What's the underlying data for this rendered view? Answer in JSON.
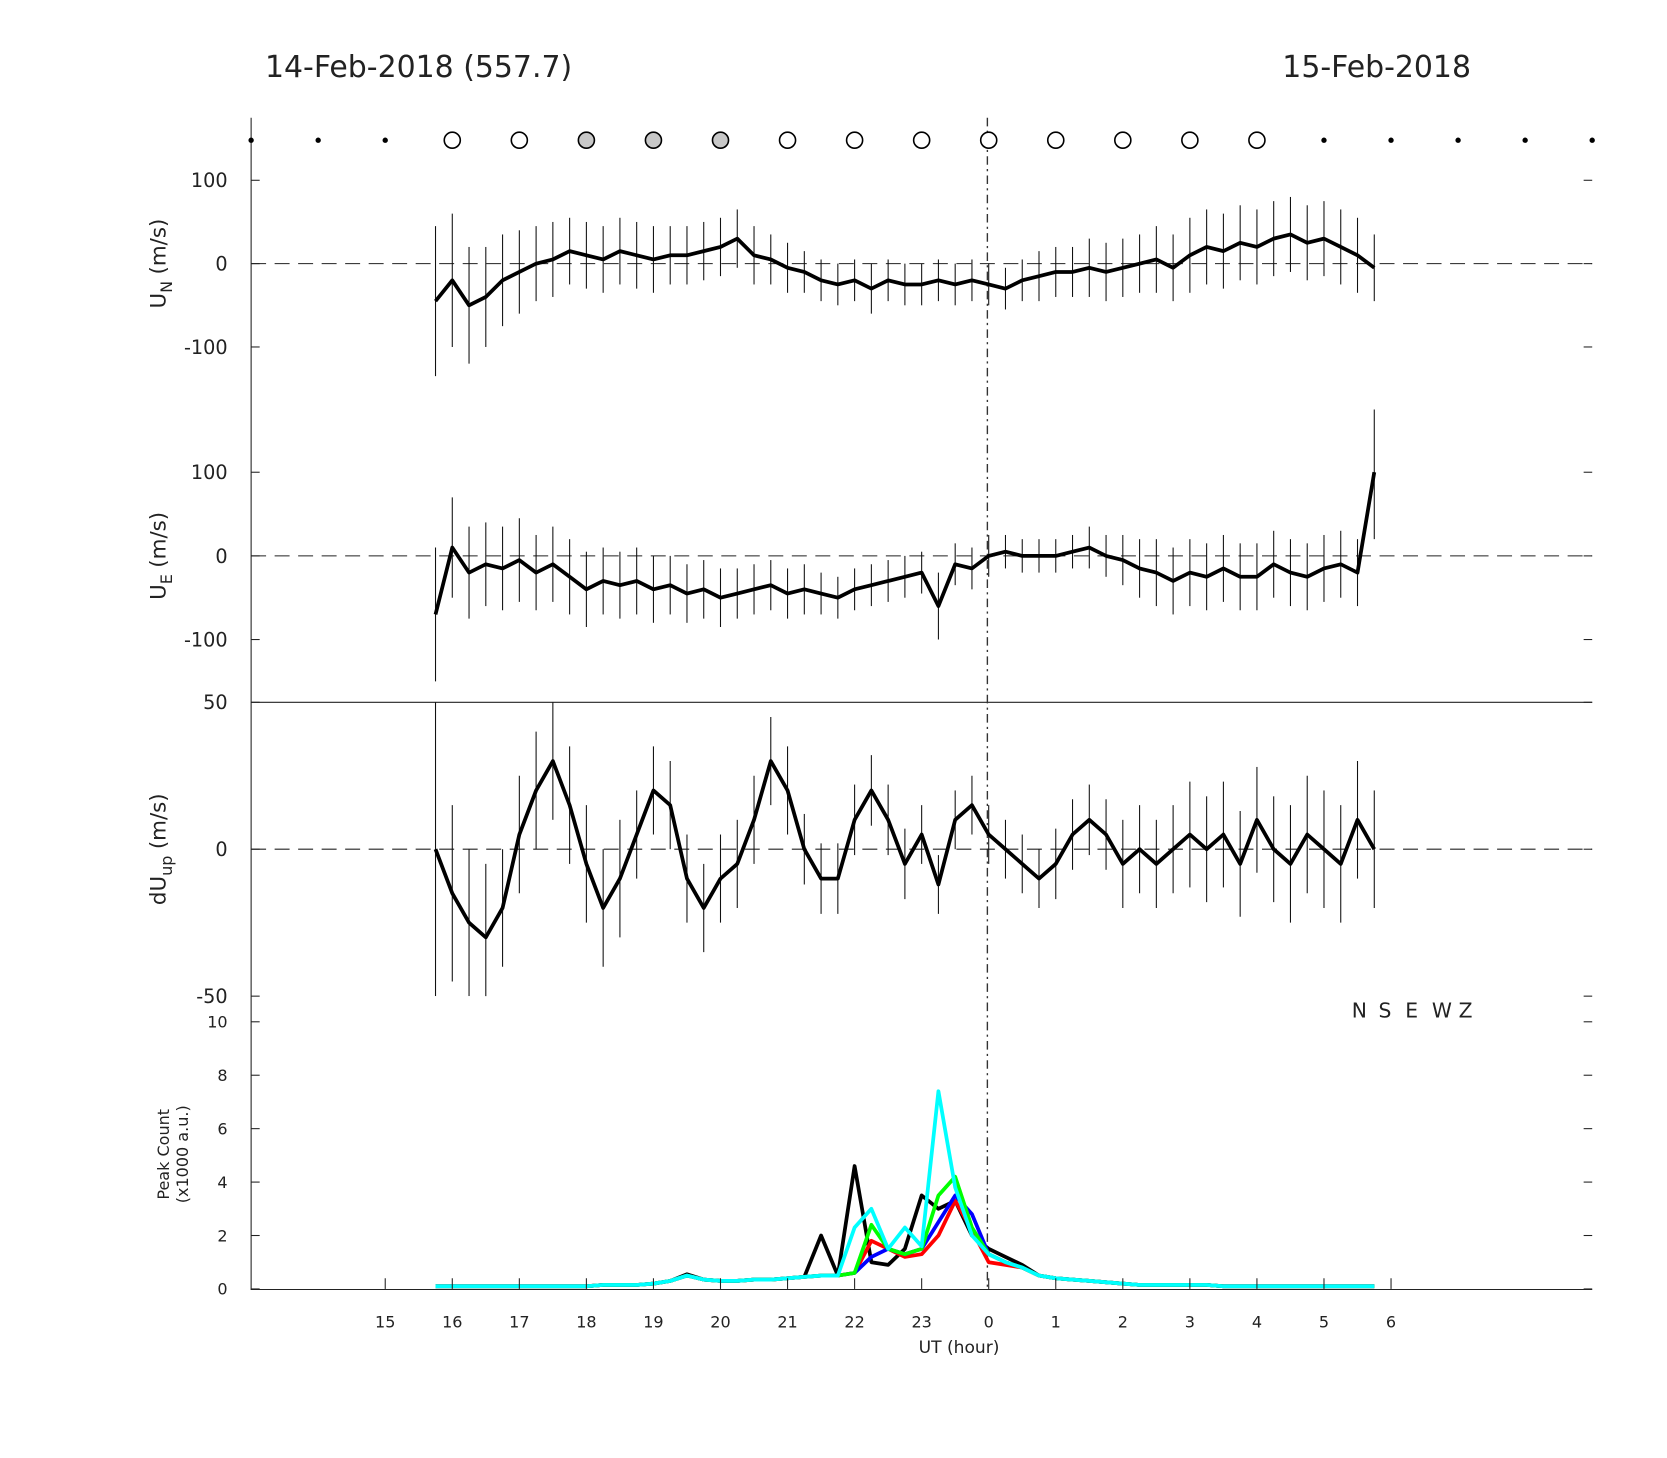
{
  "header": {
    "left": "14-Feb-2018 (557.7)",
    "right": "15-Feb-2018"
  },
  "chart_data": [
    {
      "type": "line",
      "ylabel": "U",
      "ylabel_sub": "N",
      "ylabel_unit": "(m/s)",
      "color": "#000000",
      "xlim": [
        13,
        33
      ],
      "ylim": [
        -175,
        175
      ],
      "yticks": [
        -100,
        0,
        100
      ],
      "x": [
        15.75,
        16,
        16.25,
        16.5,
        16.75,
        17,
        17.25,
        17.5,
        17.75,
        18,
        18.25,
        18.5,
        18.75,
        19,
        19.25,
        19.5,
        19.75,
        20,
        20.25,
        20.5,
        20.75,
        21,
        21.25,
        21.5,
        21.75,
        22,
        22.25,
        22.5,
        22.75,
        23,
        23.25,
        23.5,
        23.75,
        24,
        24.25,
        24.5,
        24.75,
        25,
        25.25,
        25.5,
        25.75,
        26,
        26.25,
        26.5,
        26.75,
        27,
        27.25,
        27.5,
        27.75,
        28,
        28.25,
        28.5,
        28.75,
        29,
        29.25,
        29.5,
        29.75
      ],
      "values": [
        -45,
        -20,
        -50,
        -40,
        -20,
        -10,
        0,
        5,
        15,
        10,
        5,
        15,
        10,
        5,
        10,
        10,
        15,
        20,
        30,
        10,
        5,
        -5,
        -10,
        -20,
        -25,
        -20,
        -30,
        -20,
        -25,
        -25,
        -20,
        -25,
        -20,
        -25,
        -30,
        -20,
        -15,
        -10,
        -10,
        -5,
        -10,
        -5,
        0,
        5,
        -5,
        10,
        20,
        15,
        25,
        20,
        30,
        35,
        25,
        30,
        20,
        10,
        -5
      ],
      "errors": [
        90,
        80,
        70,
        60,
        55,
        50,
        45,
        45,
        40,
        40,
        40,
        40,
        40,
        40,
        35,
        35,
        35,
        35,
        35,
        35,
        30,
        30,
        25,
        25,
        25,
        25,
        30,
        25,
        25,
        25,
        25,
        25,
        25,
        25,
        25,
        25,
        30,
        30,
        30,
        35,
        35,
        35,
        35,
        40,
        40,
        45,
        45,
        45,
        45,
        45,
        45,
        45,
        45,
        45,
        45,
        45,
        40
      ]
    },
    {
      "type": "line",
      "ylabel": "U",
      "ylabel_sub": "E",
      "ylabel_unit": "(m/s)",
      "color": "#000000",
      "xlim": [
        13,
        33
      ],
      "ylim": [
        -175,
        175
      ],
      "yticks": [
        -100,
        0,
        100
      ],
      "x": [
        15.75,
        16,
        16.25,
        16.5,
        16.75,
        17,
        17.25,
        17.5,
        17.75,
        18,
        18.25,
        18.5,
        18.75,
        19,
        19.25,
        19.5,
        19.75,
        20,
        20.25,
        20.5,
        20.75,
        21,
        21.25,
        21.5,
        21.75,
        22,
        22.25,
        22.5,
        22.75,
        23,
        23.25,
        23.5,
        23.75,
        24,
        24.25,
        24.5,
        24.75,
        25,
        25.25,
        25.5,
        25.75,
        26,
        26.25,
        26.5,
        26.75,
        27,
        27.25,
        27.5,
        27.75,
        28,
        28.25,
        28.5,
        28.75,
        29,
        29.25,
        29.5,
        29.75
      ],
      "values": [
        -70,
        10,
        -20,
        -10,
        -15,
        -5,
        -20,
        -10,
        -25,
        -40,
        -30,
        -35,
        -30,
        -40,
        -35,
        -45,
        -40,
        -50,
        -45,
        -40,
        -35,
        -45,
        -40,
        -45,
        -50,
        -40,
        -35,
        -30,
        -25,
        -20,
        -60,
        -10,
        -15,
        0,
        5,
        0,
        0,
        0,
        5,
        10,
        0,
        -5,
        -15,
        -20,
        -30,
        -20,
        -25,
        -15,
        -25,
        -25,
        -10,
        -20,
        -25,
        -15,
        -10,
        -20,
        100
      ],
      "errors": [
        80,
        60,
        55,
        50,
        50,
        50,
        45,
        45,
        45,
        45,
        40,
        40,
        40,
        40,
        35,
        35,
        35,
        35,
        30,
        30,
        30,
        30,
        30,
        25,
        25,
        25,
        25,
        25,
        25,
        25,
        40,
        25,
        25,
        25,
        20,
        20,
        20,
        20,
        20,
        25,
        25,
        30,
        35,
        40,
        40,
        40,
        40,
        40,
        40,
        40,
        40,
        40,
        40,
        40,
        40,
        40,
        80
      ]
    },
    {
      "type": "line",
      "ylabel": "dU",
      "ylabel_sub": "up",
      "ylabel_unit": "(m/s)",
      "color": "#000000",
      "xlim": [
        13,
        33
      ],
      "ylim": [
        -50,
        50
      ],
      "yticks": [
        -50,
        0,
        50
      ],
      "x": [
        15.75,
        16,
        16.25,
        16.5,
        16.75,
        17,
        17.25,
        17.5,
        17.75,
        18,
        18.25,
        18.5,
        18.75,
        19,
        19.25,
        19.5,
        19.75,
        20,
        20.25,
        20.5,
        20.75,
        21,
        21.25,
        21.5,
        21.75,
        22,
        22.25,
        22.5,
        22.75,
        23,
        23.25,
        23.5,
        23.75,
        24,
        24.25,
        24.5,
        24.75,
        25,
        25.25,
        25.5,
        25.75,
        26,
        26.25,
        26.5,
        26.75,
        27,
        27.25,
        27.5,
        27.75,
        28,
        28.25,
        28.5,
        28.75,
        29,
        29.25,
        29.5,
        29.75
      ],
      "values": [
        0,
        -15,
        -25,
        -30,
        -20,
        5,
        20,
        30,
        15,
        -5,
        -20,
        -10,
        5,
        20,
        15,
        -10,
        -20,
        -10,
        -5,
        10,
        30,
        20,
        0,
        -10,
        -10,
        10,
        20,
        10,
        -5,
        5,
        -12,
        10,
        15,
        5,
        0,
        -5,
        -10,
        -5,
        5,
        10,
        5,
        -5,
        0,
        -5,
        0,
        5,
        0,
        5,
        -5,
        10,
        0,
        -5,
        5,
        0,
        -5,
        10,
        0
      ],
      "errors": [
        50,
        30,
        25,
        25,
        20,
        20,
        20,
        20,
        20,
        20,
        20,
        20,
        15,
        15,
        15,
        15,
        15,
        15,
        15,
        15,
        15,
        15,
        12,
        12,
        12,
        12,
        12,
        12,
        12,
        10,
        10,
        10,
        10,
        10,
        10,
        10,
        10,
        12,
        12,
        12,
        12,
        15,
        15,
        15,
        15,
        18,
        18,
        18,
        18,
        18,
        18,
        20,
        20,
        20,
        20,
        20,
        20
      ]
    },
    {
      "type": "multiline",
      "ylabel": [
        "Peak Count",
        "(x1000 a.u.)"
      ],
      "xlabel": "UT (hour)",
      "xlim": [
        13,
        33
      ],
      "ylim": [
        0,
        10
      ],
      "yticks": [
        0,
        2,
        4,
        6,
        8,
        10
      ],
      "xticks": [
        15,
        16,
        17,
        18,
        19,
        20,
        21,
        22,
        23,
        {
          "value": 24,
          "label": "0"
        },
        {
          "value": 25,
          "label": "1"
        },
        {
          "value": 26,
          "label": "2"
        },
        {
          "value": 27,
          "label": "3"
        },
        {
          "value": 28,
          "label": "4"
        },
        {
          "value": 29,
          "label": "5"
        },
        {
          "value": 30,
          "label": "6"
        }
      ],
      "x": [
        15.75,
        16,
        16.25,
        16.5,
        16.75,
        17,
        17.25,
        17.5,
        17.75,
        18,
        18.25,
        18.5,
        18.75,
        19,
        19.25,
        19.5,
        19.75,
        20,
        20.25,
        20.5,
        20.75,
        21,
        21.25,
        21.5,
        21.75,
        22,
        22.25,
        22.5,
        22.75,
        23,
        23.25,
        23.5,
        23.75,
        24,
        24.25,
        24.5,
        24.75,
        25,
        25.25,
        25.5,
        25.75,
        26,
        26.25,
        26.5,
        26.75,
        27,
        27.25,
        27.5,
        27.75,
        28,
        28.25,
        28.5,
        28.75,
        29,
        29.25,
        29.5,
        29.75
      ],
      "series": [
        {
          "name": "N",
          "color": "#000000",
          "values": [
            0.1,
            0.1,
            0.1,
            0.1,
            0.1,
            0.1,
            0.1,
            0.1,
            0.1,
            0.1,
            0.15,
            0.15,
            0.15,
            0.2,
            0.3,
            0.55,
            0.35,
            0.3,
            0.3,
            0.35,
            0.35,
            0.4,
            0.45,
            2.0,
            0.5,
            4.6,
            1.0,
            0.9,
            1.5,
            3.5,
            3.0,
            3.3,
            2.0,
            1.5,
            1.2,
            0.9,
            0.5,
            0.4,
            0.35,
            0.3,
            0.25,
            0.2,
            0.15,
            0.15,
            0.15,
            0.15,
            0.15,
            0.1,
            0.1,
            0.1,
            0.1,
            0.1,
            0.1,
            0.1,
            0.1,
            0.1,
            0.1
          ]
        },
        {
          "name": "S",
          "color": "#ff0000",
          "values": [
            0.1,
            0.1,
            0.1,
            0.1,
            0.1,
            0.1,
            0.1,
            0.1,
            0.1,
            0.1,
            0.15,
            0.15,
            0.15,
            0.2,
            0.3,
            0.5,
            0.35,
            0.3,
            0.3,
            0.35,
            0.35,
            0.4,
            0.45,
            0.5,
            0.5,
            0.6,
            1.8,
            1.5,
            1.2,
            1.3,
            2.0,
            3.3,
            2.2,
            1.0,
            0.9,
            0.8,
            0.5,
            0.4,
            0.35,
            0.3,
            0.25,
            0.2,
            0.15,
            0.15,
            0.15,
            0.15,
            0.15,
            0.1,
            0.1,
            0.1,
            0.1,
            0.1,
            0.1,
            0.1,
            0.1,
            0.1,
            0.1
          ]
        },
        {
          "name": "E",
          "color": "#0000ff",
          "values": [
            0.1,
            0.1,
            0.1,
            0.1,
            0.1,
            0.1,
            0.1,
            0.1,
            0.1,
            0.1,
            0.15,
            0.15,
            0.15,
            0.2,
            0.3,
            0.5,
            0.35,
            0.3,
            0.3,
            0.35,
            0.35,
            0.4,
            0.45,
            0.5,
            0.5,
            0.6,
            1.2,
            1.5,
            1.3,
            1.5,
            2.5,
            3.5,
            2.8,
            1.3,
            1.0,
            0.8,
            0.5,
            0.4,
            0.35,
            0.3,
            0.25,
            0.2,
            0.15,
            0.15,
            0.15,
            0.15,
            0.15,
            0.1,
            0.1,
            0.1,
            0.1,
            0.1,
            0.1,
            0.1,
            0.1,
            0.1,
            0.1
          ]
        },
        {
          "name": "W",
          "color": "#00ff00",
          "values": [
            0.1,
            0.1,
            0.1,
            0.1,
            0.1,
            0.1,
            0.1,
            0.1,
            0.1,
            0.1,
            0.15,
            0.15,
            0.15,
            0.2,
            0.3,
            0.5,
            0.35,
            0.3,
            0.3,
            0.35,
            0.35,
            0.4,
            0.45,
            0.5,
            0.5,
            0.6,
            2.4,
            1.5,
            1.3,
            1.5,
            3.5,
            4.2,
            2.3,
            1.3,
            1.0,
            0.8,
            0.5,
            0.4,
            0.35,
            0.3,
            0.25,
            0.2,
            0.15,
            0.15,
            0.15,
            0.15,
            0.15,
            0.1,
            0.1,
            0.1,
            0.1,
            0.1,
            0.1,
            0.1,
            0.1,
            0.1,
            0.1
          ]
        },
        {
          "name": "Z",
          "color": "#00ffff",
          "values": [
            0.1,
            0.1,
            0.1,
            0.1,
            0.1,
            0.1,
            0.1,
            0.1,
            0.1,
            0.1,
            0.15,
            0.15,
            0.15,
            0.2,
            0.3,
            0.5,
            0.35,
            0.3,
            0.3,
            0.35,
            0.35,
            0.4,
            0.45,
            0.5,
            0.5,
            2.3,
            3.0,
            1.5,
            2.3,
            1.6,
            7.4,
            3.8,
            2.0,
            1.3,
            1.0,
            0.8,
            0.5,
            0.4,
            0.35,
            0.3,
            0.25,
            0.2,
            0.15,
            0.15,
            0.15,
            0.15,
            0.15,
            0.1,
            0.1,
            0.1,
            0.1,
            0.1,
            0.1,
            0.1,
            0.1,
            0.1,
            0.1
          ]
        }
      ]
    }
  ]
}
